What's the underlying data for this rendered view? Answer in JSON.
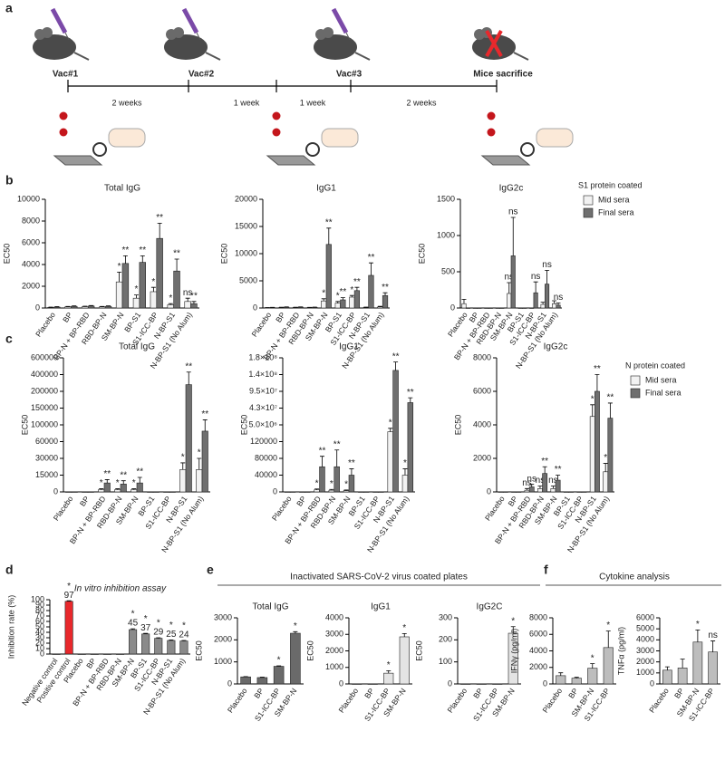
{
  "timeline": {
    "panel_label": "a",
    "events": [
      "Vac#1",
      "Vac#2",
      "Vac#3",
      "Mice sacrifice"
    ],
    "intervals": [
      "2 weeks",
      "1 week",
      "1 week",
      "2 weeks"
    ]
  },
  "chart_data": [
    {
      "type": "bar",
      "panel_label": "b",
      "title": "Total IgG",
      "y_label": "EC50",
      "categories": [
        "Placebo",
        "BP",
        "BP-N + BP-RBD",
        "RBD-BP-N",
        "SM-BP-N",
        "BP-S1",
        "S1-ICC-BP",
        "N-BP-S1",
        "N-BP-S1 (No Alum)"
      ],
      "ylim": [
        0,
        10000
      ],
      "yticks": [
        0,
        2000,
        4000,
        6000,
        8000,
        10000
      ],
      "series": [
        {
          "name": "Mid sera",
          "color": "#f2f2f2",
          "values": [
            50,
            100,
            120,
            100,
            2400,
            900,
            1500,
            300,
            600
          ],
          "errors": [
            30,
            40,
            40,
            40,
            900,
            300,
            400,
            100,
            300
          ],
          "significance": [
            null,
            null,
            null,
            null,
            "*",
            "*",
            "*",
            "*",
            "ns"
          ]
        },
        {
          "name": "Final sera",
          "color": "#6f6f6f",
          "values": [
            80,
            150,
            180,
            150,
            4100,
            4200,
            6400,
            3400,
            400
          ],
          "errors": [
            40,
            50,
            50,
            50,
            700,
            600,
            1400,
            1100,
            200
          ],
          "significance": [
            null,
            null,
            null,
            null,
            "**",
            "**",
            "**",
            "**",
            "**"
          ]
        }
      ]
    },
    {
      "type": "bar",
      "title": "IgG1",
      "y_label": "EC50",
      "categories": [
        "Placebo",
        "BP",
        "BP-N + BP-RBD",
        "RBD-BP-N",
        "SM-BP-N",
        "BP-S1",
        "S1-ICC-BP",
        "N-BP-S1",
        "N-BP-S1 (No Alum)"
      ],
      "ylim": [
        0,
        20000
      ],
      "yticks": [
        0,
        5000,
        10000,
        15000,
        20000
      ],
      "series": [
        {
          "name": "Mid sera",
          "color": "#f2f2f2",
          "values": [
            50,
            100,
            100,
            80,
            1300,
            900,
            2000,
            100,
            200
          ],
          "errors": [
            30,
            40,
            40,
            40,
            400,
            300,
            300,
            60,
            100
          ],
          "significance": [
            null,
            null,
            null,
            null,
            "*",
            "*",
            "*",
            null,
            null
          ]
        },
        {
          "name": "Final sera",
          "color": "#6f6f6f",
          "values": [
            80,
            150,
            150,
            120,
            11700,
            1500,
            3200,
            6000,
            2300
          ],
          "errors": [
            40,
            50,
            50,
            50,
            3000,
            400,
            600,
            2300,
            500
          ],
          "significance": [
            null,
            null,
            null,
            null,
            "**",
            "**",
            "**",
            "**",
            "**"
          ]
        }
      ]
    },
    {
      "type": "bar",
      "title": "IgG2c",
      "y_label": "EC50",
      "legend_title": "S1 protein coated",
      "categories": [
        "Placebo",
        "BP",
        "BP-N + BP-RBD",
        "RBD-BP-N",
        "SM-BP-N",
        "BP-S1",
        "S1-ICC-BP",
        "N-BP-S1",
        "N-BP-S1 (No Alum)"
      ],
      "ylim": [
        0,
        1500
      ],
      "yticks": [
        0,
        500,
        1000,
        1500
      ],
      "series": [
        {
          "name": "Mid sera",
          "color": "#f2f2f2",
          "values": [
            60,
            0,
            0,
            0,
            200,
            0,
            0,
            50,
            60
          ],
          "errors": [
            60,
            null,
            null,
            null,
            150,
            null,
            null,
            30,
            40
          ],
          "significance": [
            null,
            null,
            null,
            null,
            "ns",
            null,
            null,
            null,
            null
          ]
        },
        {
          "name": "Final sera",
          "color": "#6f6f6f",
          "values": [
            0,
            0,
            0,
            0,
            720,
            0,
            210,
            330,
            40
          ],
          "errors": [
            null,
            null,
            null,
            null,
            530,
            null,
            150,
            190,
            30
          ],
          "significance": [
            null,
            null,
            null,
            null,
            "ns",
            null,
            "ns",
            "ns",
            "ns"
          ]
        }
      ]
    },
    {
      "type": "bar",
      "panel_label": "c",
      "title": "Total IgG",
      "y_label": "EC50",
      "scale": "piecewise",
      "categories": [
        "Placebo",
        "BP",
        "BP-N + BP-RBD",
        "RBD-BP-N",
        "SM-BP-N",
        "BP-S1",
        "S1-ICC-BP",
        "N-BP-S1",
        "N-BP-S1 (No Alum)"
      ],
      "ylim": [
        0,
        600000
      ],
      "yticks": [
        0,
        15000,
        30000,
        60000,
        100000,
        150000,
        200000,
        400000,
        600000
      ],
      "series": [
        {
          "name": "Mid sera",
          "color": "#f2f2f2",
          "values": [
            0,
            0,
            2000,
            2000,
            2000,
            0,
            0,
            20000,
            20000
          ],
          "errors": [
            null,
            null,
            800,
            800,
            800,
            null,
            null,
            6000,
            10000
          ],
          "significance": [
            null,
            null,
            "*",
            "*",
            "*",
            null,
            null,
            "*",
            "*"
          ]
        },
        {
          "name": "Final sera",
          "color": "#6f6f6f",
          "values": [
            0,
            0,
            8000,
            7000,
            8000,
            0,
            0,
            280000,
            85000
          ],
          "errors": [
            null,
            null,
            3000,
            3000,
            5000,
            null,
            null,
            150000,
            30000
          ],
          "significance": [
            null,
            null,
            "**",
            "**",
            "**",
            null,
            null,
            "**",
            "**"
          ]
        }
      ]
    },
    {
      "type": "bar",
      "title": "IgG1",
      "y_label": "EC50",
      "scale": "piecewise",
      "categories": [
        "Placebo",
        "BP",
        "BP-N + BP-RBD",
        "RBD-BP-N",
        "SM-BP-N",
        "BP-S1",
        "S1-ICC-BP",
        "N-BP-S1",
        "N-BP-S1 (No Alum)"
      ],
      "ylim": [
        0,
        180000000
      ],
      "yticks": [
        0,
        40000,
        80000,
        120000,
        {
          "value": 5000000,
          "label": "5.0×10⁶"
        },
        {
          "value": 43000000,
          "label": "4.3×10⁷"
        },
        {
          "value": 95000000,
          "label": "9.5×10⁷"
        },
        {
          "value": 140000000,
          "label": "1.4×10⁸"
        },
        {
          "value": 180000000,
          "label": "1.8×10⁸"
        }
      ],
      "series": [
        {
          "name": "Mid sera",
          "color": "#f2f2f2",
          "values": [
            0,
            0,
            5000,
            4000,
            3000,
            0,
            0,
            3000000,
            40000
          ],
          "errors": [
            null,
            null,
            2000,
            2000,
            1500,
            null,
            null,
            1000000,
            15000
          ],
          "significance": [
            null,
            null,
            "*",
            "*",
            "*",
            null,
            null,
            "*",
            "*"
          ]
        },
        {
          "name": "Final sera",
          "color": "#6f6f6f",
          "values": [
            0,
            0,
            60000,
            60000,
            40000,
            0,
            0,
            150000000,
            60000000
          ],
          "errors": [
            null,
            null,
            25000,
            40000,
            15000,
            null,
            null,
            20000000,
            15000000
          ],
          "significance": [
            null,
            null,
            "**",
            "**",
            "**",
            null,
            null,
            "**",
            "**"
          ]
        }
      ]
    },
    {
      "type": "bar",
      "title": "IgG2c",
      "y_label": "EC50",
      "legend_title": "N protein coated",
      "categories": [
        "Placebo",
        "BP",
        "BP-N + BP-RBD",
        "RBD-BP-N",
        "SM-BP-N",
        "BP-S1",
        "S1-ICC-BP",
        "N-BP-S1",
        "N-BP-S1 (No Alum)"
      ],
      "ylim": [
        0,
        8000
      ],
      "yticks": [
        0,
        2000,
        4000,
        6000,
        8000
      ],
      "series": [
        {
          "name": "Mid sera",
          "color": "#f2f2f2",
          "values": [
            0,
            0,
            100,
            200,
            200,
            0,
            0,
            4500,
            1200
          ],
          "errors": [
            null,
            null,
            100,
            150,
            150,
            null,
            null,
            700,
            500
          ],
          "significance": [
            null,
            null,
            "ns",
            "ns",
            "ns",
            null,
            null,
            "*",
            "*"
          ]
        },
        {
          "name": "Final sera",
          "color": "#6f6f6f",
          "values": [
            0,
            0,
            300,
            1100,
            700,
            0,
            0,
            6000,
            4400
          ],
          "errors": [
            null,
            null,
            150,
            400,
            300,
            null,
            null,
            1000,
            900
          ],
          "significance": [
            null,
            null,
            "ns",
            "**",
            "**",
            null,
            null,
            "**",
            "**"
          ]
        }
      ]
    },
    {
      "type": "bar",
      "panel_label": "d",
      "title": "In vitro inhibition assay",
      "y_label": "Inhibition rate (%)",
      "show_values": true,
      "categories": [
        "Negative control",
        "Positive control",
        "Placebo",
        "BP",
        "BP-N + BP-RBD",
        "RBD-BP-N",
        "SM-BP-N",
        "BP-S1",
        "S1-ICC-BP",
        "N-BP-S1",
        "N-BP-S1 (No Alum)"
      ],
      "ylim": [
        0,
        100
      ],
      "yticks": [
        0,
        10,
        20,
        30,
        40,
        50,
        60,
        70,
        80,
        90,
        100
      ],
      "values": [
        0,
        97,
        0,
        0,
        0,
        0,
        45,
        37,
        29,
        25,
        24
      ],
      "errors": [
        null,
        1,
        null,
        null,
        null,
        null,
        1.5,
        1,
        1,
        1,
        1
      ],
      "colors": [
        "#888888",
        "#e8282c",
        "#888888",
        "#888888",
        "#888888",
        "#888888",
        "#8a8a8a",
        "#8a8a8a",
        "#8a8a8a",
        "#8a8a8a",
        "#8a8a8a"
      ],
      "significance": [
        null,
        "*",
        null,
        null,
        null,
        null,
        "*",
        "*",
        "*",
        "*",
        "*"
      ]
    },
    {
      "type": "bar",
      "panel_label": "e",
      "group_title": "Inactivated SARS-CoV-2 virus coated plates",
      "title": "Total IgG",
      "y_label": "EC50",
      "categories": [
        "Placebo",
        "BP",
        "S1-ICC-BP",
        "SM-BP-N"
      ],
      "ylim": [
        0,
        3000
      ],
      "yticks": [
        0,
        1000,
        2000,
        3000
      ],
      "values": [
        320,
        290,
        800,
        2300
      ],
      "errors": [
        15,
        15,
        20,
        70
      ],
      "color": "#6a6a6a",
      "significance": [
        null,
        null,
        "*",
        "*"
      ]
    },
    {
      "type": "bar",
      "title": "IgG1",
      "y_label": "EC50",
      "categories": [
        "Placebo",
        "BP",
        "S1-ICC-BP",
        "SM-BP-N"
      ],
      "ylim": [
        0,
        4000
      ],
      "yticks": [
        0,
        1000,
        2000,
        3000,
        4000
      ],
      "values": [
        0,
        0,
        650,
        2850
      ],
      "errors": [
        null,
        null,
        150,
        200
      ],
      "color": "#e4e4e4",
      "significance": [
        null,
        null,
        "*",
        "*"
      ]
    },
    {
      "type": "bar",
      "title": "IgG2C",
      "y_label": "EC50",
      "categories": [
        "Placebo",
        "BP",
        "S1-ICC-BP",
        "SM-BP-N"
      ],
      "ylim": [
        0,
        300
      ],
      "yticks": [
        0,
        100,
        200,
        300
      ],
      "values": [
        0,
        0,
        0,
        230
      ],
      "errors": [
        null,
        null,
        null,
        30
      ],
      "color": "#e4e4e4",
      "significance": [
        null,
        null,
        null,
        "*"
      ]
    },
    {
      "type": "bar",
      "panel_label": "f",
      "group_title": "Cytokine analysis",
      "y_label": "IFNγ (pg/ml)",
      "categories": [
        "Placebo",
        "BP",
        "SM-BP-N",
        "S1-ICC-BP"
      ],
      "ylim": [
        0,
        8000
      ],
      "yticks": [
        0,
        2000,
        4000,
        6000,
        8000
      ],
      "values": [
        1000,
        700,
        1900,
        4400
      ],
      "errors": [
        350,
        100,
        550,
        2000
      ],
      "color": "#bdbdbd",
      "significance": [
        null,
        null,
        "*",
        "*"
      ]
    },
    {
      "type": "bar",
      "y_label": "TNFα (pg/ml)",
      "categories": [
        "Placebo",
        "BP",
        "SM-BP-N",
        "S1-ICC-BP"
      ],
      "ylim": [
        0,
        6000
      ],
      "yticks": [
        0,
        1000,
        2000,
        3000,
        4000,
        5000,
        6000
      ],
      "values": [
        1250,
        1450,
        3800,
        2900
      ],
      "errors": [
        300,
        800,
        1100,
        1000
      ],
      "color": "#bdbdbd",
      "significance": [
        null,
        null,
        "*",
        "ns"
      ]
    }
  ]
}
